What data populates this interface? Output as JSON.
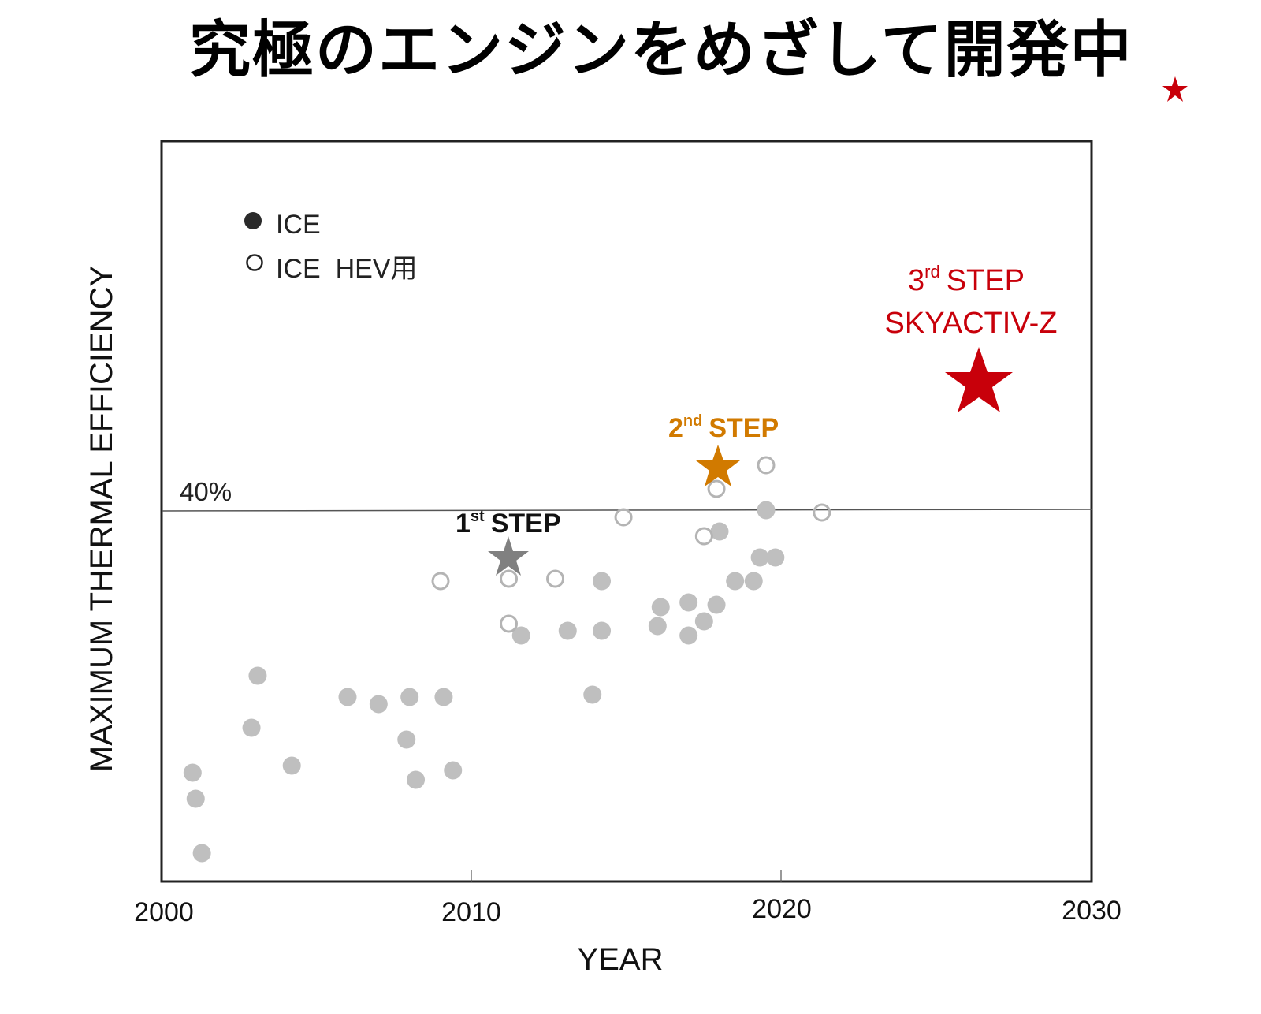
{
  "title": "究極のエンジンをめざして開発中",
  "colors": {
    "ice_fill": "#bfbfbf",
    "hev_stroke": "#b4b4b4",
    "step1": "#808080",
    "step2": "#d17a00",
    "step3": "#c8000a",
    "axis": "#222222",
    "refline": "#555555",
    "text": "#111111"
  },
  "chart_data": {
    "type": "scatter",
    "title": "究極のエンジンをめざして開発中",
    "xlabel": "YEAR",
    "ylabel": "MAXIMUM THERMAL EFFICIENCY",
    "xlim": [
      2000,
      2030
    ],
    "x_ticks": [
      "2000",
      "2010",
      "2020",
      "2030"
    ],
    "reference_line": {
      "label": "40%",
      "value": 40
    },
    "y_note": "y values are estimated thermal efficiency (%) using 40% reference line; approx scale 30px per 1%",
    "grid": false,
    "legend": {
      "position": "top-left",
      "entries": [
        {
          "label": "ICE",
          "marker": "filled-circle"
        },
        {
          "label": "ICE  HEV用",
          "marker": "open-circle"
        }
      ]
    },
    "series": [
      {
        "name": "ICE",
        "marker": "filled-circle",
        "points": [
          {
            "x": 2001.0,
            "y": 28.9
          },
          {
            "x": 2001.1,
            "y": 27.8
          },
          {
            "x": 2001.3,
            "y": 25.5
          },
          {
            "x": 2002.9,
            "y": 30.8
          },
          {
            "x": 2003.1,
            "y": 33.0
          },
          {
            "x": 2004.2,
            "y": 29.2
          },
          {
            "x": 2006.0,
            "y": 32.1
          },
          {
            "x": 2007.0,
            "y": 31.8
          },
          {
            "x": 2008.0,
            "y": 32.1
          },
          {
            "x": 2007.9,
            "y": 30.3
          },
          {
            "x": 2008.2,
            "y": 28.6
          },
          {
            "x": 2009.1,
            "y": 32.1
          },
          {
            "x": 2009.4,
            "y": 29.0
          },
          {
            "x": 2011.6,
            "y": 34.7
          },
          {
            "x": 2013.1,
            "y": 34.9
          },
          {
            "x": 2013.9,
            "y": 32.2
          },
          {
            "x": 2014.2,
            "y": 34.9
          },
          {
            "x": 2014.2,
            "y": 37.0
          },
          {
            "x": 2016.0,
            "y": 35.1
          },
          {
            "x": 2016.1,
            "y": 35.9
          },
          {
            "x": 2017.0,
            "y": 34.7
          },
          {
            "x": 2017.0,
            "y": 36.1
          },
          {
            "x": 2017.5,
            "y": 35.3
          },
          {
            "x": 2017.9,
            "y": 36.0
          },
          {
            "x": 2018.5,
            "y": 37.0
          },
          {
            "x": 2019.1,
            "y": 37.0
          },
          {
            "x": 2019.3,
            "y": 38.0
          },
          {
            "x": 2019.8,
            "y": 38.0
          },
          {
            "x": 2018.0,
            "y": 39.1
          },
          {
            "x": 2019.5,
            "y": 40.0
          }
        ]
      },
      {
        "name": "ICE HEV用",
        "marker": "open-circle",
        "points": [
          {
            "x": 2009.0,
            "y": 37.0
          },
          {
            "x": 2011.2,
            "y": 37.1
          },
          {
            "x": 2011.2,
            "y": 35.2
          },
          {
            "x": 2012.7,
            "y": 37.1
          },
          {
            "x": 2014.9,
            "y": 39.7
          },
          {
            "x": 2017.5,
            "y": 38.9
          },
          {
            "x": 2017.9,
            "y": 40.9
          },
          {
            "x": 2019.5,
            "y": 41.9
          },
          {
            "x": 2021.3,
            "y": 39.9
          }
        ]
      }
    ],
    "annotations": [
      {
        "label_main": "1",
        "label_sup": "st",
        "label_rest": " STEP",
        "x": 2011.2,
        "y": 38.0,
        "marker": "star",
        "color": "#808080"
      },
      {
        "label_main": "2",
        "label_sup": "nd",
        "label_rest": " STEP",
        "x": 2017.9,
        "y": 41.8,
        "marker": "star",
        "color": "#d17a00"
      },
      {
        "label_main": "3",
        "label_sup": "rd",
        "label_rest": " STEP",
        "label_line2": "SKYACTIV-Z",
        "x": 2026.5,
        "y": 45.5,
        "marker": "star",
        "color": "#c8000a"
      }
    ]
  },
  "axis": {
    "x_ticks": [
      {
        "label": "2000",
        "year": 2000
      },
      {
        "label": "2010",
        "year": 2010
      },
      {
        "label": "2020",
        "year": 2020
      },
      {
        "label": "2030",
        "year": 2030
      }
    ],
    "xlabel": "YEAR",
    "ylabel": "MAXIMUM THERMAL EFFICIENCY",
    "ref_label": "40%"
  },
  "legend": {
    "ice": "ICE",
    "hev": "ICE  HEV用"
  },
  "steps": {
    "s1": {
      "num": "1",
      "sup": "st",
      "rest": "STEP"
    },
    "s2": {
      "num": "2",
      "sup": "nd",
      "rest": "STEP"
    },
    "s3": {
      "num": "3",
      "sup": "rd",
      "rest": "STEP",
      "line2": "SKYACTIV-Z"
    }
  },
  "corner_icon": "star-icon"
}
